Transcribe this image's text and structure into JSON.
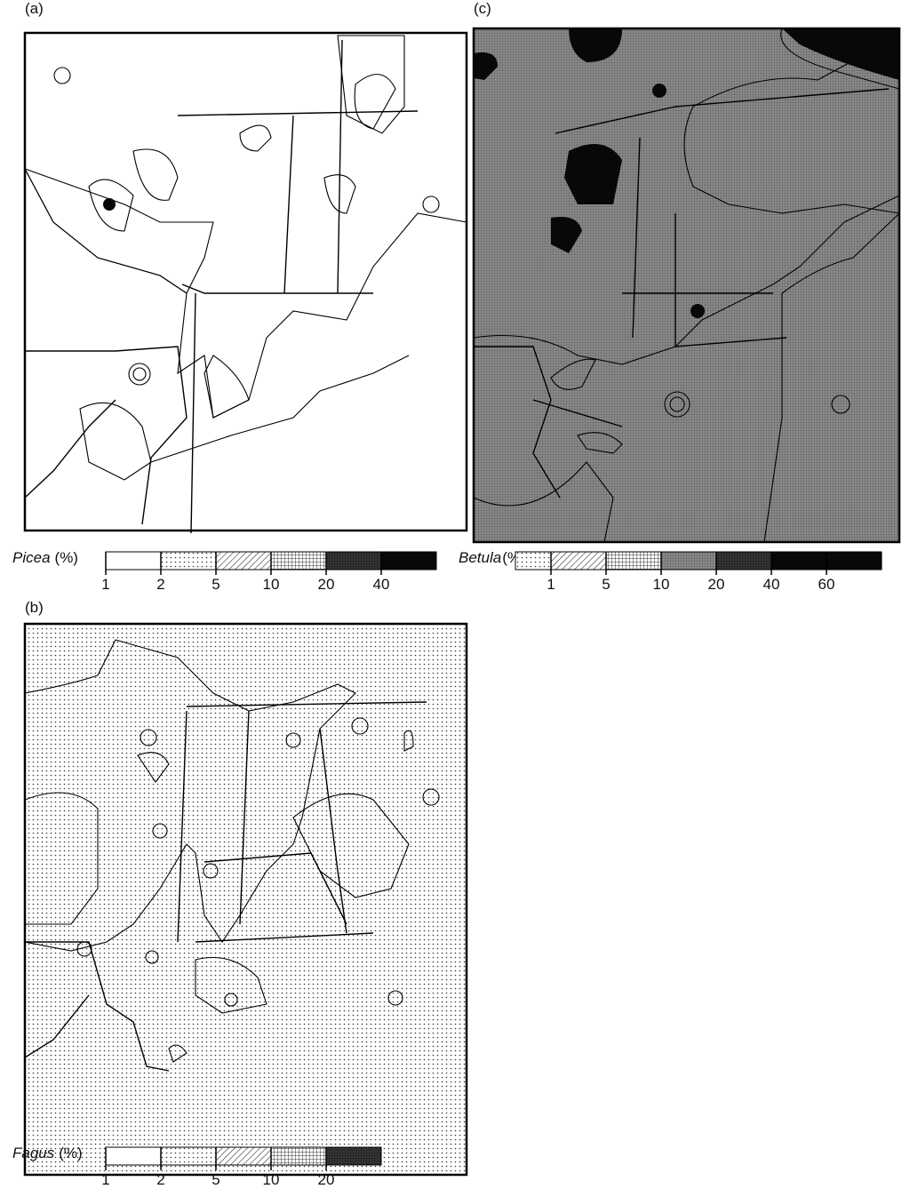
{
  "panels": [
    {
      "label": "(a)",
      "legend": {
        "name": "Picea",
        "unit": "(%)",
        "breaks": [
          1,
          2,
          5,
          10,
          20,
          40
        ]
      }
    },
    {
      "label": "(b)",
      "legend": {
        "name": "Fagus",
        "unit": "(%)",
        "breaks": [
          1,
          2,
          5,
          10,
          20
        ]
      }
    },
    {
      "label": "(c)",
      "legend": {
        "name": "Betula",
        "unit": "(%)",
        "breaks": [
          1,
          5,
          10,
          20,
          40,
          60
        ]
      }
    }
  ]
}
